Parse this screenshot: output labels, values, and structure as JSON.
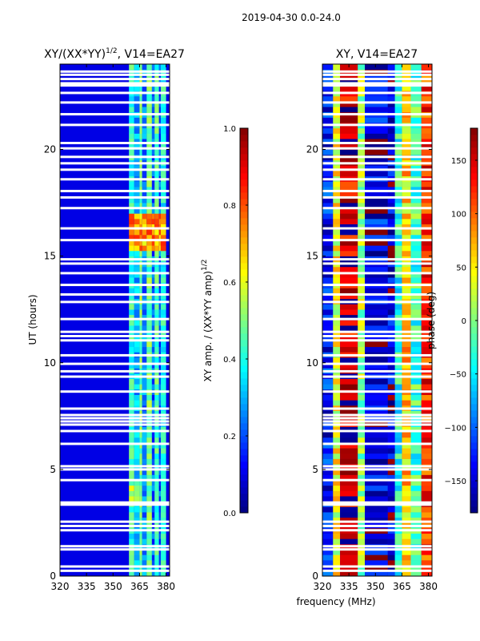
{
  "figure_title": "2019-04-30 0.0-24.0",
  "colors": {
    "jet": [
      "#00007f",
      "#0000ff",
      "#0080ff",
      "#00ffff",
      "#80ff80",
      "#ffff00",
      "#ff8000",
      "#ff0000",
      "#7f0000"
    ],
    "gap": "#ffffff"
  },
  "chart_data": [
    {
      "type": "heatmap",
      "title_main": "XY/(XX*YY)",
      "title_sup": "1/2",
      "title_rest": ", V14=EA27",
      "xlabel": "",
      "ylabel": "UT (hours)",
      "xlim": [
        320,
        382
      ],
      "ylim": [
        0,
        24
      ],
      "xticks": [
        320,
        335,
        350,
        365,
        380
      ],
      "xtick_labels": [
        "320",
        "335",
        "350",
        "365",
        "380"
      ],
      "yticks": [
        0,
        5,
        10,
        15,
        20
      ],
      "ytick_labels": [
        "0",
        "5",
        "10",
        "15",
        "20"
      ],
      "colorbar": {
        "label_main": "XY amp. / (XX*YY amp)",
        "label_sup": "1/2",
        "vmin": 0.0,
        "vmax": 1.0,
        "ticks": [
          0.0,
          0.2,
          0.4,
          0.6,
          0.8,
          1.0
        ],
        "tick_labels": [
          "0.0",
          "0.2",
          "0.4",
          "0.6",
          "0.8",
          "1.0"
        ]
      },
      "background_value": 0.1,
      "bands": [
        {
          "f0": 359,
          "f1": 362,
          "value": 0.42
        },
        {
          "f0": 362,
          "f1": 365,
          "value": 0.3
        },
        {
          "f0": 365,
          "f1": 366.5,
          "value": 0.5
        },
        {
          "f0": 366.5,
          "f1": 369,
          "value": 0.25
        },
        {
          "f0": 369,
          "f1": 372,
          "value": 0.48
        },
        {
          "f0": 372,
          "f1": 373.5,
          "value": 0.22
        },
        {
          "f0": 373.5,
          "f1": 376,
          "value": 0.45
        },
        {
          "f0": 376,
          "f1": 377,
          "value": 0.2
        },
        {
          "f0": 377,
          "f1": 380,
          "value": 0.4
        }
      ],
      "hotspots": [
        {
          "t0": 15.2,
          "t1": 17.0,
          "f0": 359,
          "f1": 380,
          "value": 0.72
        },
        {
          "t0": 3.5,
          "t1": 4.5,
          "f0": 359,
          "f1": 365,
          "value": 0.55
        }
      ]
    },
    {
      "type": "heatmap",
      "title_main": "XY, V14=EA27",
      "title_sup": "",
      "title_rest": "",
      "xlabel": "frequency (MHz)",
      "ylabel": "",
      "xlim": [
        320,
        382
      ],
      "ylim": [
        0,
        24
      ],
      "xticks": [
        320,
        335,
        350,
        365,
        380
      ],
      "xtick_labels": [
        "320",
        "335",
        "350",
        "365",
        "380"
      ],
      "yticks": [
        0,
        5,
        10,
        15,
        20
      ],
      "ytick_labels": [
        "0",
        "5",
        "10",
        "15",
        "20"
      ],
      "colorbar": {
        "label_main": "phase (deg)",
        "label_sup": "",
        "vmin": -180,
        "vmax": 180,
        "ticks": [
          -150,
          -100,
          -50,
          0,
          50,
          100,
          150
        ],
        "tick_labels": [
          "−150",
          "−100",
          "−50",
          "0",
          "50",
          "100",
          "150"
        ]
      },
      "regions": [
        {
          "f0": 320,
          "f1": 326,
          "value": -130
        },
        {
          "f0": 326,
          "f1": 330,
          "value": 40
        },
        {
          "f0": 330,
          "f1": 340,
          "value": 150
        },
        {
          "f0": 340,
          "f1": 344,
          "value": 10
        },
        {
          "f0": 344,
          "f1": 357,
          "value": -140
        },
        {
          "f0": 357,
          "f1": 361,
          "value": -150
        },
        {
          "f0": 361,
          "f1": 365,
          "value": -30
        },
        {
          "f0": 365,
          "f1": 370,
          "value": 60
        },
        {
          "f0": 370,
          "f1": 376,
          "value": -20
        },
        {
          "f0": 376,
          "f1": 382,
          "value": 120
        }
      ]
    }
  ],
  "gap_rows_hours": [
    0.25,
    0.45,
    1.25,
    1.4,
    2.15,
    2.35,
    2.55,
    3.35,
    3.45,
    4.5,
    5.0,
    5.15,
    6.2,
    6.8,
    7.1,
    7.25,
    7.4,
    7.55,
    7.85,
    8.65,
    9.35,
    9.6,
    9.95,
    10.35,
    11.05,
    11.25,
    11.45,
    12.05,
    12.85,
    13.2,
    13.65,
    14.2,
    14.65,
    14.85,
    15.75,
    16.3,
    17.25,
    17.75,
    18.05,
    18.6,
    19.05,
    19.35,
    19.65,
    20.05,
    20.3,
    21.15,
    21.65,
    22.2,
    22.65,
    23.0,
    23.1,
    23.3,
    23.5,
    23.65
  ]
}
